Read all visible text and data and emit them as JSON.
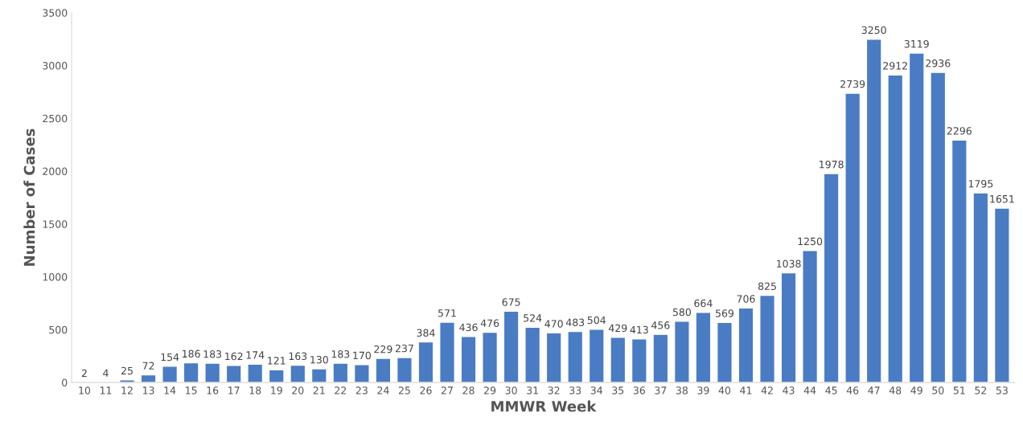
{
  "chart_data": {
    "type": "bar",
    "xlabel": "MMWR Week",
    "ylabel": "Number of Cases",
    "categories": [
      "10",
      "11",
      "12",
      "13",
      "14",
      "15",
      "16",
      "17",
      "18",
      "19",
      "20",
      "21",
      "22",
      "23",
      "24",
      "25",
      "26",
      "27",
      "28",
      "29",
      "30",
      "31",
      "32",
      "33",
      "34",
      "35",
      "36",
      "37",
      "38",
      "39",
      "40",
      "41",
      "42",
      "43",
      "44",
      "45",
      "46",
      "47",
      "48",
      "49",
      "50",
      "51",
      "52",
      "53"
    ],
    "values": [
      2,
      4,
      25,
      72,
      154,
      186,
      183,
      162,
      174,
      121,
      163,
      130,
      183,
      170,
      229,
      237,
      384,
      571,
      436,
      476,
      675,
      524,
      470,
      483,
      504,
      429,
      413,
      456,
      580,
      664,
      569,
      706,
      825,
      1038,
      1250,
      1978,
      2739,
      3250,
      2912,
      3119,
      2936,
      2296,
      1795,
      1651
    ],
    "color": "#4a7cc4",
    "ylim": [
      0,
      3500
    ],
    "yticks": [
      0,
      500,
      1000,
      1500,
      2000,
      2500,
      3000,
      3500
    ],
    "data_labels": true,
    "grid": false
  }
}
